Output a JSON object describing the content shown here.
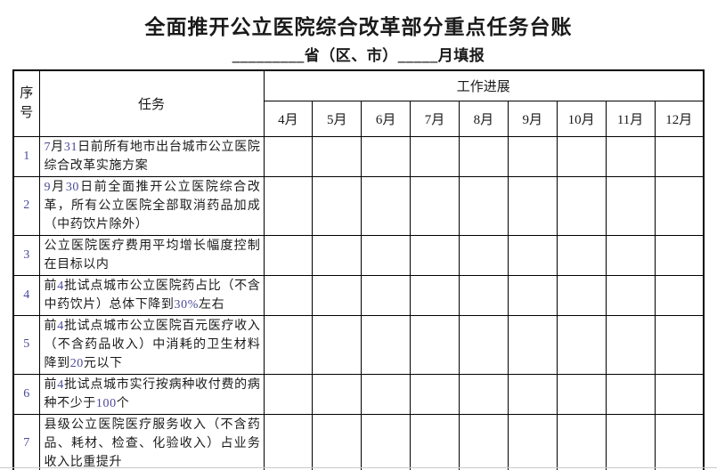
{
  "title": "全面推开公立医院综合改革部分重点任务台账",
  "subtitle": "_________省（区、市）_____月填报",
  "colors": {
    "text": "#1a1a1a",
    "number_text": "#4a4a99",
    "border": "#000000",
    "background": "#ffffff"
  },
  "table": {
    "header": {
      "seq": "序号",
      "task": "任务",
      "progress": "工作进展",
      "months": [
        "4月",
        "5月",
        "6月",
        "7月",
        "8月",
        "9月",
        "10月",
        "11月",
        "12月"
      ]
    },
    "rows": [
      {
        "seq": "1",
        "task": "7月31日前所有地市出台城市公立医院综合改革实施方案"
      },
      {
        "seq": "2",
        "task": "9月30日前全面推开公立医院综合改革，所有公立医院全部取消药品加成（中药饮片除外）"
      },
      {
        "seq": "3",
        "task": "公立医院医疗费用平均增长幅度控制在目标以内"
      },
      {
        "seq": "4",
        "task": "前4批试点城市公立医院药占比（不含中药饮片）总体下降到30%左右"
      },
      {
        "seq": "5",
        "task": "前4批试点城市公立医院百元医疗收入（不含药品收入）中消耗的卫生材料降到20元以下"
      },
      {
        "seq": "6",
        "task": "前4批试点城市实行按病种收付费的病种不少于100个"
      },
      {
        "seq": "7",
        "task": "县级公立医院医疗服务收入（不含药品、耗材、检查、化验收入）占业务收入比重提升"
      }
    ],
    "progress_cell_value": ""
  }
}
